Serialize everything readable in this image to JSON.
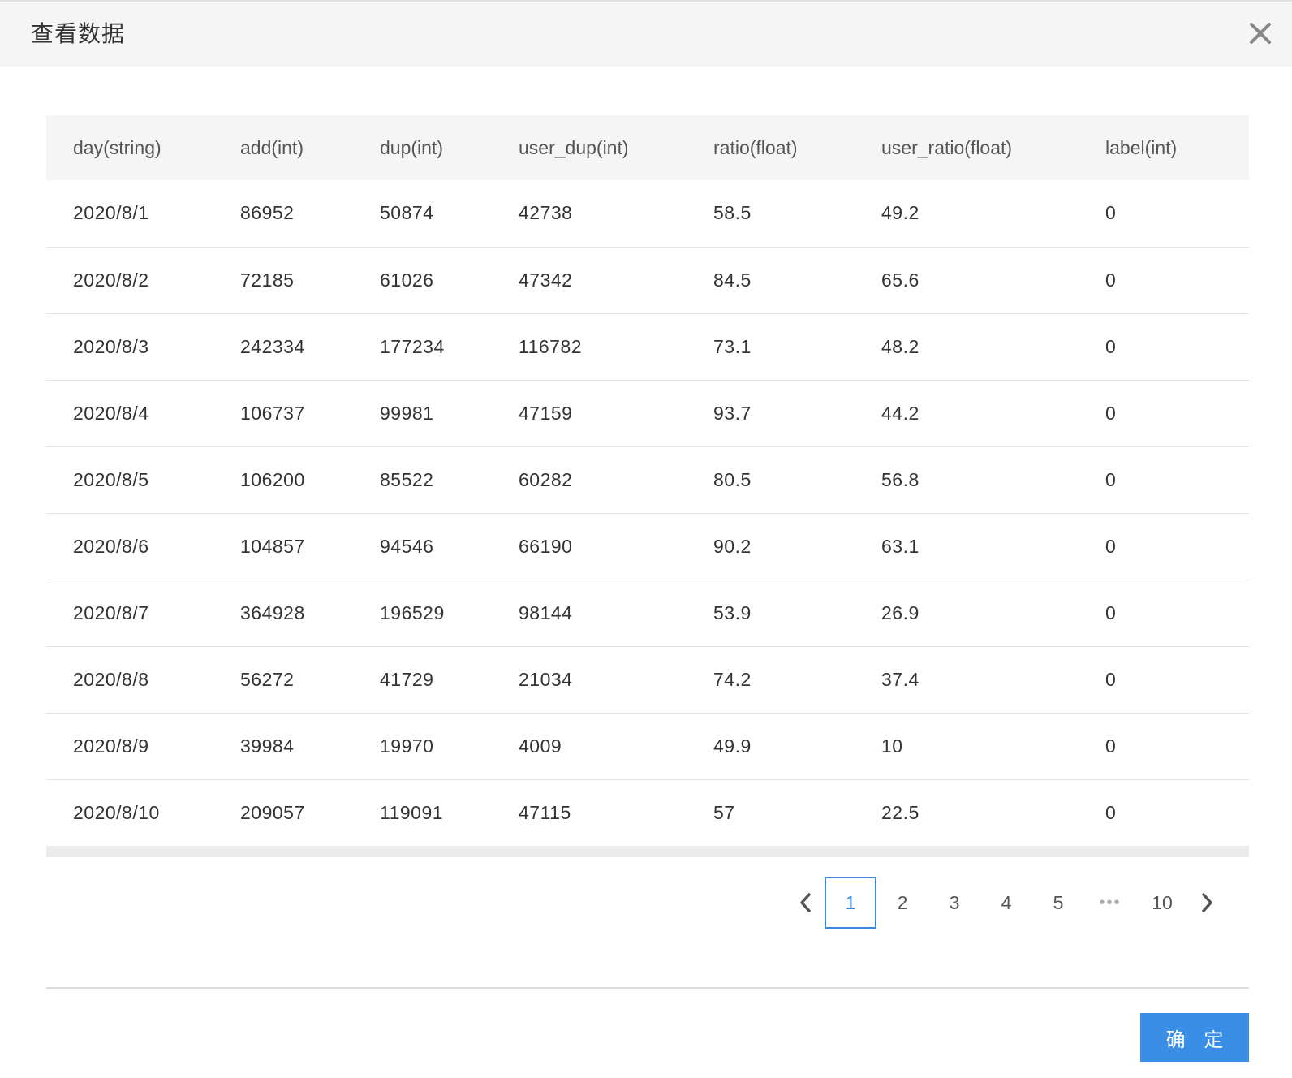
{
  "dialog": {
    "title": "查看数据",
    "confirm_label": "确 定"
  },
  "table": {
    "columns": [
      "day(string)",
      "add(int)",
      "dup(int)",
      "user_dup(int)",
      "ratio(float)",
      "user_ratio(float)",
      "label(int)"
    ],
    "rows": [
      [
        "2020/8/1",
        "86952",
        "50874",
        "42738",
        "58.5",
        "49.2",
        "0"
      ],
      [
        "2020/8/2",
        "72185",
        "61026",
        "47342",
        "84.5",
        "65.6",
        "0"
      ],
      [
        "2020/8/3",
        "242334",
        "177234",
        "116782",
        "73.1",
        "48.2",
        "0"
      ],
      [
        "2020/8/4",
        "106737",
        "99981",
        "47159",
        "93.7",
        "44.2",
        "0"
      ],
      [
        "2020/8/5",
        "106200",
        "85522",
        "60282",
        "80.5",
        "56.8",
        "0"
      ],
      [
        "2020/8/6",
        "104857",
        "94546",
        "66190",
        "90.2",
        "63.1",
        "0"
      ],
      [
        "2020/8/7",
        "364928",
        "196529",
        "98144",
        "53.9",
        "26.9",
        "0"
      ],
      [
        "2020/8/8",
        "56272",
        "41729",
        "21034",
        "74.2",
        "37.4",
        "0"
      ],
      [
        "2020/8/9",
        "39984",
        "19970",
        "4009",
        "49.9",
        "10",
        "0"
      ],
      [
        "2020/8/10",
        "209057",
        "119091",
        "47115",
        "57",
        "22.5",
        "0"
      ]
    ]
  },
  "pagination": {
    "pages": [
      "1",
      "2",
      "3",
      "4",
      "5"
    ],
    "ellipsis": "•••",
    "last_page": "10",
    "current": "1"
  },
  "icons": {
    "close": "close-icon",
    "prev": "chevron-left-icon",
    "next": "chevron-right-icon"
  },
  "colors": {
    "accent": "#3a8ee6",
    "header_bg": "#f5f5f5"
  }
}
